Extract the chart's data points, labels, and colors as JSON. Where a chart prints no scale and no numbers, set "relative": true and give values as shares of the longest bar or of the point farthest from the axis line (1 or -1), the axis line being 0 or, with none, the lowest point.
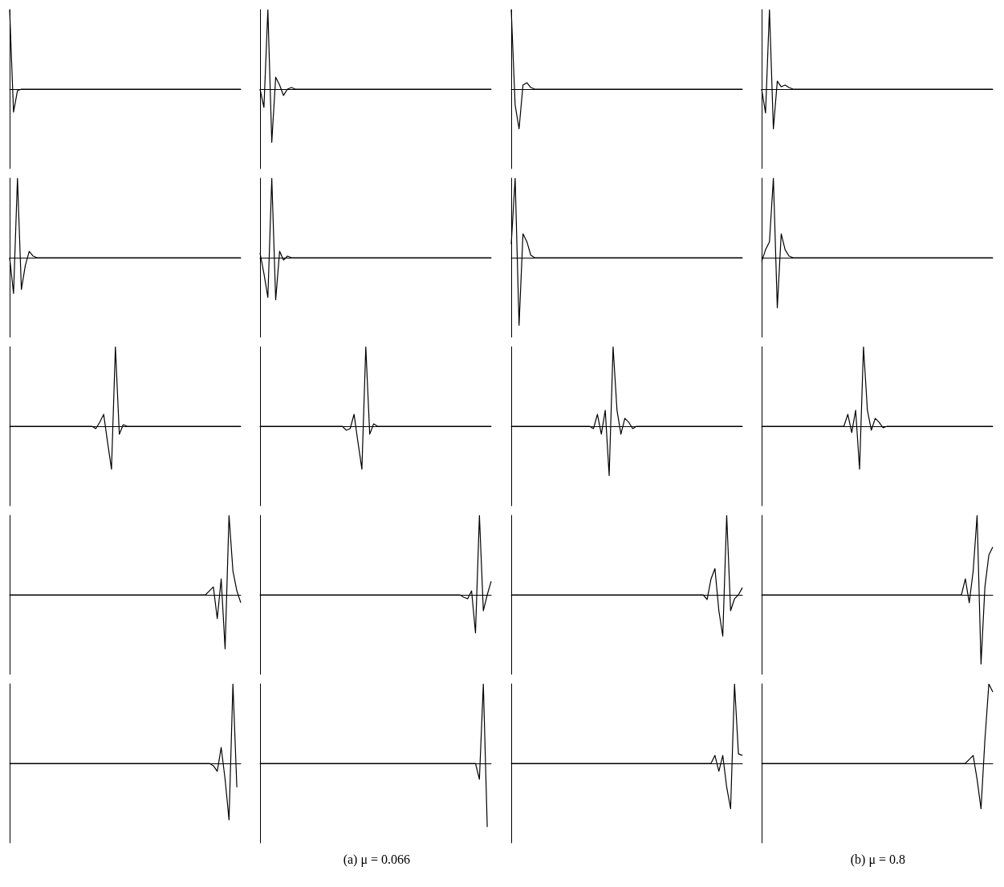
{
  "chart_data": [
    {
      "type": "line",
      "relative": true,
      "tick_labels": false,
      "color": "#000000",
      "categories": [
        null,
        null,
        null,
        null,
        null,
        null,
        null,
        null,
        null,
        null,
        null,
        null,
        null,
        null,
        null,
        null,
        null,
        null,
        null,
        null,
        null,
        null,
        null,
        null,
        null,
        null,
        null,
        null,
        null,
        null,
        null,
        null,
        null,
        null,
        null,
        null,
        null,
        null,
        null,
        null,
        null,
        null,
        null,
        null,
        null,
        null,
        null,
        null,
        null,
        null,
        null,
        null,
        null,
        null,
        null,
        null,
        null,
        null,
        null,
        null
      ],
      "values": [
        1,
        -0.29,
        -0.02,
        0,
        0,
        0,
        0,
        0,
        0,
        0,
        0,
        0,
        0,
        0,
        0,
        0,
        0,
        0,
        0,
        0,
        0,
        0,
        0,
        0,
        0,
        0,
        0,
        0,
        0,
        0,
        0,
        0,
        0,
        0,
        0,
        0,
        0,
        0,
        0,
        0,
        0,
        0,
        0,
        0,
        0,
        0,
        0,
        0,
        0,
        0,
        0,
        0,
        0,
        0,
        0,
        0,
        0,
        0,
        0,
        0
      ]
    },
    {
      "type": "line",
      "relative": true,
      "tick_labels": false,
      "color": "#000000",
      "categories": [
        null,
        null,
        null,
        null,
        null,
        null,
        null,
        null,
        null,
        null,
        null,
        null,
        null,
        null,
        null,
        null,
        null,
        null,
        null,
        null,
        null,
        null,
        null,
        null,
        null,
        null,
        null,
        null,
        null,
        null,
        null,
        null,
        null,
        null,
        null,
        null,
        null,
        null,
        null,
        null,
        null,
        null,
        null,
        null,
        null,
        null,
        null,
        null,
        null,
        null,
        null,
        null,
        null,
        null,
        null,
        null,
        null,
        null,
        null,
        null
      ],
      "values": [
        0,
        -0.23,
        1,
        -0.67,
        0.15,
        0.05,
        -0.08,
        0,
        0.02,
        0,
        0,
        0,
        0,
        0,
        0,
        0,
        0,
        0,
        0,
        0,
        0,
        0,
        0,
        0,
        0,
        0,
        0,
        0,
        0,
        0,
        0,
        0,
        0,
        0,
        0,
        0,
        0,
        0,
        0,
        0,
        0,
        0,
        0,
        0,
        0,
        0,
        0,
        0,
        0,
        0,
        0,
        0,
        0,
        0,
        0,
        0,
        0,
        0,
        0,
        0
      ]
    },
    {
      "type": "line",
      "relative": true,
      "tick_labels": false,
      "color": "#000000",
      "categories": [
        null,
        null,
        null,
        null,
        null,
        null,
        null,
        null,
        null,
        null,
        null,
        null,
        null,
        null,
        null,
        null,
        null,
        null,
        null,
        null,
        null,
        null,
        null,
        null,
        null,
        null,
        null,
        null,
        null,
        null,
        null,
        null,
        null,
        null,
        null,
        null,
        null,
        null,
        null,
        null,
        null,
        null,
        null,
        null,
        null,
        null,
        null,
        null,
        null,
        null,
        null,
        null,
        null,
        null,
        null,
        null,
        null,
        null,
        null,
        null
      ],
      "values": [
        1,
        -0.2,
        -0.5,
        0.05,
        0.08,
        0.02,
        0,
        0,
        0,
        0,
        0,
        0,
        0,
        0,
        0,
        0,
        0,
        0,
        0,
        0,
        0,
        0,
        0,
        0,
        0,
        0,
        0,
        0,
        0,
        0,
        0,
        0,
        0,
        0,
        0,
        0,
        0,
        0,
        0,
        0,
        0,
        0,
        0,
        0,
        0,
        0,
        0,
        0,
        0,
        0,
        0,
        0,
        0,
        0,
        0,
        0,
        0,
        0,
        0,
        0
      ]
    },
    {
      "type": "line",
      "relative": true,
      "tick_labels": false,
      "color": "#000000",
      "categories": [
        null,
        null,
        null,
        null,
        null,
        null,
        null,
        null,
        null,
        null,
        null,
        null,
        null,
        null,
        null,
        null,
        null,
        null,
        null,
        null,
        null,
        null,
        null,
        null,
        null,
        null,
        null,
        null,
        null,
        null,
        null,
        null,
        null,
        null,
        null,
        null,
        null,
        null,
        null,
        null,
        null,
        null,
        null,
        null,
        null,
        null,
        null,
        null,
        null,
        null,
        null,
        null,
        null,
        null,
        null,
        null,
        null,
        null,
        null,
        null
      ],
      "values": [
        0,
        -0.3,
        1,
        -0.5,
        0.1,
        0.03,
        0.05,
        0.02,
        0,
        0,
        0,
        0,
        0,
        0,
        0,
        0,
        0,
        0,
        0,
        0,
        0,
        0,
        0,
        0,
        0,
        0,
        0,
        0,
        0,
        0,
        0,
        0,
        0,
        0,
        0,
        0,
        0,
        0,
        0,
        0,
        0,
        0,
        0,
        0,
        0,
        0,
        0,
        0,
        0,
        0,
        0,
        0,
        0,
        0,
        0,
        0,
        0,
        0,
        0,
        0
      ]
    },
    {
      "type": "line",
      "relative": true,
      "tick_labels": false,
      "color": "#000000",
      "categories": [
        null,
        null,
        null,
        null,
        null,
        null,
        null,
        null,
        null,
        null,
        null,
        null,
        null,
        null,
        null,
        null,
        null,
        null,
        null,
        null,
        null,
        null,
        null,
        null,
        null,
        null,
        null,
        null,
        null,
        null,
        null,
        null,
        null,
        null,
        null,
        null,
        null,
        null,
        null,
        null,
        null,
        null,
        null,
        null,
        null,
        null,
        null,
        null,
        null,
        null,
        null,
        null,
        null,
        null,
        null,
        null,
        null,
        null,
        null,
        null
      ],
      "values": [
        0,
        -0.45,
        1,
        -0.4,
        -0.1,
        0.08,
        0.02,
        0,
        0,
        0,
        0,
        0,
        0,
        0,
        0,
        0,
        0,
        0,
        0,
        0,
        0,
        0,
        0,
        0,
        0,
        0,
        0,
        0,
        0,
        0,
        0,
        0,
        0,
        0,
        0,
        0,
        0,
        0,
        0,
        0,
        0,
        0,
        0,
        0,
        0,
        0,
        0,
        0,
        0,
        0,
        0,
        0,
        0,
        0,
        0,
        0,
        0,
        0,
        0,
        0
      ]
    },
    {
      "type": "line",
      "relative": true,
      "tick_labels": false,
      "color": "#000000",
      "categories": [
        null,
        null,
        null,
        null,
        null,
        null,
        null,
        null,
        null,
        null,
        null,
        null,
        null,
        null,
        null,
        null,
        null,
        null,
        null,
        null,
        null,
        null,
        null,
        null,
        null,
        null,
        null,
        null,
        null,
        null,
        null,
        null,
        null,
        null,
        null,
        null,
        null,
        null,
        null,
        null,
        null,
        null,
        null,
        null,
        null,
        null,
        null,
        null,
        null,
        null,
        null,
        null,
        null,
        null,
        null,
        null,
        null,
        null,
        null,
        null
      ],
      "values": [
        0.06,
        -0.2,
        -0.5,
        1,
        -0.53,
        0.08,
        -0.03,
        0.02,
        0,
        0,
        0,
        0,
        0,
        0,
        0,
        0,
        0,
        0,
        0,
        0,
        0,
        0,
        0,
        0,
        0,
        0,
        0,
        0,
        0,
        0,
        0,
        0,
        0,
        0,
        0,
        0,
        0,
        0,
        0,
        0,
        0,
        0,
        0,
        0,
        0,
        0,
        0,
        0,
        0,
        0,
        0,
        0,
        0,
        0,
        0,
        0,
        0,
        0,
        0,
        0
      ]
    },
    {
      "type": "line",
      "relative": true,
      "tick_labels": false,
      "color": "#000000",
      "categories": [
        null,
        null,
        null,
        null,
        null,
        null,
        null,
        null,
        null,
        null,
        null,
        null,
        null,
        null,
        null,
        null,
        null,
        null,
        null,
        null,
        null,
        null,
        null,
        null,
        null,
        null,
        null,
        null,
        null,
        null,
        null,
        null,
        null,
        null,
        null,
        null,
        null,
        null,
        null,
        null,
        null,
        null,
        null,
        null,
        null,
        null,
        null,
        null,
        null,
        null,
        null,
        null,
        null,
        null,
        null,
        null,
        null,
        null,
        null,
        null
      ],
      "values": [
        0.17,
        1,
        -0.85,
        0.3,
        0.2,
        0.03,
        0,
        0,
        0,
        0,
        0,
        0,
        0,
        0,
        0,
        0,
        0,
        0,
        0,
        0,
        0,
        0,
        0,
        0,
        0,
        0,
        0,
        0,
        0,
        0,
        0,
        0,
        0,
        0,
        0,
        0,
        0,
        0,
        0,
        0,
        0,
        0,
        0,
        0,
        0,
        0,
        0,
        0,
        0,
        0,
        0,
        0,
        0,
        0,
        0,
        0,
        0,
        0,
        0,
        0
      ]
    },
    {
      "type": "line",
      "relative": true,
      "tick_labels": false,
      "color": "#000000",
      "categories": [
        null,
        null,
        null,
        null,
        null,
        null,
        null,
        null,
        null,
        null,
        null,
        null,
        null,
        null,
        null,
        null,
        null,
        null,
        null,
        null,
        null,
        null,
        null,
        null,
        null,
        null,
        null,
        null,
        null,
        null,
        null,
        null,
        null,
        null,
        null,
        null,
        null,
        null,
        null,
        null,
        null,
        null,
        null,
        null,
        null,
        null,
        null,
        null,
        null,
        null,
        null,
        null,
        null,
        null,
        null,
        null,
        null,
        null,
        null,
        null
      ],
      "values": [
        -0.05,
        0.1,
        0.2,
        1,
        -0.63,
        0.3,
        0.1,
        0.02,
        0,
        0,
        0,
        0,
        0,
        0,
        0,
        0,
        0,
        0,
        0,
        0,
        0,
        0,
        0,
        0,
        0,
        0,
        0,
        0,
        0,
        0,
        0,
        0,
        0,
        0,
        0,
        0,
        0,
        0,
        0,
        0,
        0,
        0,
        0,
        0,
        0,
        0,
        0,
        0,
        0,
        0,
        0,
        0,
        0,
        0,
        0,
        0,
        0,
        0,
        0,
        0
      ]
    },
    {
      "type": "line",
      "relative": true,
      "tick_labels": false,
      "color": "#000000",
      "categories": [
        null,
        null,
        null,
        null,
        null,
        null,
        null,
        null,
        null,
        null,
        null,
        null,
        null,
        null,
        null,
        null,
        null,
        null,
        null,
        null,
        null,
        null,
        null,
        null,
        null,
        null,
        null,
        null,
        null,
        null,
        null,
        null,
        null,
        null,
        null,
        null,
        null,
        null,
        null,
        null,
        null,
        null,
        null,
        null,
        null,
        null,
        null,
        null,
        null,
        null,
        null,
        null,
        null,
        null,
        null,
        null,
        null,
        null,
        null,
        null
      ],
      "values": [
        0,
        0,
        0,
        0,
        0,
        0,
        0,
        0,
        0,
        0,
        0,
        0,
        0,
        0,
        0,
        0,
        0,
        0,
        0,
        0,
        0,
        0,
        -0.03,
        0.05,
        0.15,
        -0.2,
        -0.54,
        1,
        -0.1,
        0.02,
        0,
        0,
        0,
        0,
        0,
        0,
        0,
        0,
        0,
        0,
        0,
        0,
        0,
        0,
        0,
        0,
        0,
        0,
        0,
        0,
        0,
        0,
        0,
        0,
        0,
        0,
        0,
        0,
        0,
        0
      ]
    },
    {
      "type": "line",
      "relative": true,
      "tick_labels": false,
      "color": "#000000",
      "categories": [
        null,
        null,
        null,
        null,
        null,
        null,
        null,
        null,
        null,
        null,
        null,
        null,
        null,
        null,
        null,
        null,
        null,
        null,
        null,
        null,
        null,
        null,
        null,
        null,
        null,
        null,
        null,
        null,
        null,
        null,
        null,
        null,
        null,
        null,
        null,
        null,
        null,
        null,
        null,
        null,
        null,
        null,
        null,
        null,
        null,
        null,
        null,
        null,
        null,
        null,
        null,
        null,
        null,
        null,
        null,
        null,
        null,
        null,
        null,
        null
      ],
      "values": [
        0,
        0,
        0,
        0,
        0,
        0,
        0,
        0,
        0,
        0,
        0,
        0,
        0,
        0,
        0,
        0,
        0,
        0,
        0,
        0,
        0,
        0,
        -0.05,
        -0.03,
        0.15,
        -0.2,
        -0.54,
        1,
        -0.1,
        0.03,
        0,
        0,
        0,
        0,
        0,
        0,
        0,
        0,
        0,
        0,
        0,
        0,
        0,
        0,
        0,
        0,
        0,
        0,
        0,
        0,
        0,
        0,
        0,
        0,
        0,
        0,
        0,
        0,
        0,
        0
      ]
    },
    {
      "type": "line",
      "relative": true,
      "tick_labels": false,
      "color": "#000000",
      "categories": [
        null,
        null,
        null,
        null,
        null,
        null,
        null,
        null,
        null,
        null,
        null,
        null,
        null,
        null,
        null,
        null,
        null,
        null,
        null,
        null,
        null,
        null,
        null,
        null,
        null,
        null,
        null,
        null,
        null,
        null,
        null,
        null,
        null,
        null,
        null,
        null,
        null,
        null,
        null,
        null,
        null,
        null,
        null,
        null,
        null,
        null,
        null,
        null,
        null,
        null,
        null,
        null,
        null,
        null,
        null,
        null,
        null,
        null,
        null,
        null
      ],
      "values": [
        0,
        0,
        0,
        0,
        0,
        0,
        0,
        0,
        0,
        0,
        0,
        0,
        0,
        0,
        0,
        0,
        0,
        0,
        0,
        0,
        0,
        -0.03,
        0.15,
        -0.1,
        0.2,
        -0.62,
        1,
        0.2,
        -0.1,
        0.1,
        0.05,
        -0.03,
        0,
        0,
        0,
        0,
        0,
        0,
        0,
        0,
        0,
        0,
        0,
        0,
        0,
        0,
        0,
        0,
        0,
        0,
        0,
        0,
        0,
        0,
        0,
        0,
        0,
        0,
        0,
        0
      ]
    },
    {
      "type": "line",
      "relative": true,
      "tick_labels": false,
      "color": "#000000",
      "categories": [
        null,
        null,
        null,
        null,
        null,
        null,
        null,
        null,
        null,
        null,
        null,
        null,
        null,
        null,
        null,
        null,
        null,
        null,
        null,
        null,
        null,
        null,
        null,
        null,
        null,
        null,
        null,
        null,
        null,
        null,
        null,
        null,
        null,
        null,
        null,
        null,
        null,
        null,
        null,
        null,
        null,
        null,
        null,
        null,
        null,
        null,
        null,
        null,
        null,
        null,
        null,
        null,
        null,
        null,
        null,
        null,
        null,
        null,
        null,
        null
      ],
      "values": [
        0,
        0,
        0,
        0,
        0,
        0,
        0,
        0,
        0,
        0,
        0,
        0,
        0,
        0,
        0,
        0,
        0,
        0,
        0,
        0,
        0,
        0,
        0.15,
        -0.08,
        0.2,
        -0.54,
        1,
        0.2,
        -0.05,
        0.1,
        0.05,
        -0.02,
        0,
        0,
        0,
        0,
        0,
        0,
        0,
        0,
        0,
        0,
        0,
        0,
        0,
        0,
        0,
        0,
        0,
        0,
        0,
        0,
        0,
        0,
        0,
        0,
        0,
        0,
        0,
        0
      ]
    },
    {
      "type": "line",
      "relative": true,
      "tick_labels": false,
      "color": "#000000",
      "categories": [
        null,
        null,
        null,
        null,
        null,
        null,
        null,
        null,
        null,
        null,
        null,
        null,
        null,
        null,
        null,
        null,
        null,
        null,
        null,
        null,
        null,
        null,
        null,
        null,
        null,
        null,
        null,
        null,
        null,
        null,
        null,
        null,
        null,
        null,
        null,
        null,
        null,
        null,
        null,
        null,
        null,
        null,
        null,
        null,
        null,
        null,
        null,
        null,
        null,
        null,
        null,
        null,
        null,
        null,
        null,
        null,
        null,
        null,
        null,
        null
      ],
      "values": [
        0,
        0,
        0,
        0,
        0,
        0,
        0,
        0,
        0,
        0,
        0,
        0,
        0,
        0,
        0,
        0,
        0,
        0,
        0,
        0,
        0,
        0,
        0,
        0,
        0,
        0,
        0,
        0,
        0,
        0,
        0,
        0,
        0,
        0,
        0,
        0,
        0,
        0,
        0,
        0,
        0,
        0,
        0,
        0,
        0,
        0,
        0,
        0,
        0,
        0,
        0,
        0.05,
        0.1,
        -0.3,
        0.2,
        -0.68,
        1,
        0.3,
        0.05,
        -0.1
      ]
    },
    {
      "type": "line",
      "relative": true,
      "tick_labels": false,
      "color": "#000000",
      "categories": [
        null,
        null,
        null,
        null,
        null,
        null,
        null,
        null,
        null,
        null,
        null,
        null,
        null,
        null,
        null,
        null,
        null,
        null,
        null,
        null,
        null,
        null,
        null,
        null,
        null,
        null,
        null,
        null,
        null,
        null,
        null,
        null,
        null,
        null,
        null,
        null,
        null,
        null,
        null,
        null,
        null,
        null,
        null,
        null,
        null,
        null,
        null,
        null,
        null,
        null,
        null,
        null,
        null,
        null,
        null,
        null,
        null,
        null,
        null,
        null
      ],
      "values": [
        0,
        0,
        0,
        0,
        0,
        0,
        0,
        0,
        0,
        0,
        0,
        0,
        0,
        0,
        0,
        0,
        0,
        0,
        0,
        0,
        0,
        0,
        0,
        0,
        0,
        0,
        0,
        0,
        0,
        0,
        0,
        0,
        0,
        0,
        0,
        0,
        0,
        0,
        0,
        0,
        0,
        0,
        0,
        0,
        0,
        0,
        0,
        0,
        0,
        0,
        0,
        0,
        -0.03,
        -0.05,
        0.05,
        -0.48,
        1,
        -0.2,
        0,
        0.17
      ]
    },
    {
      "type": "line",
      "relative": true,
      "tick_labels": false,
      "color": "#000000",
      "categories": [
        null,
        null,
        null,
        null,
        null,
        null,
        null,
        null,
        null,
        null,
        null,
        null,
        null,
        null,
        null,
        null,
        null,
        null,
        null,
        null,
        null,
        null,
        null,
        null,
        null,
        null,
        null,
        null,
        null,
        null,
        null,
        null,
        null,
        null,
        null,
        null,
        null,
        null,
        null,
        null,
        null,
        null,
        null,
        null,
        null,
        null,
        null,
        null,
        null,
        null,
        null,
        null,
        null,
        null,
        null,
        null,
        null,
        null,
        null,
        null
      ],
      "values": [
        0,
        0,
        0,
        0,
        0,
        0,
        0,
        0,
        0,
        0,
        0,
        0,
        0,
        0,
        0,
        0,
        0,
        0,
        0,
        0,
        0,
        0,
        0,
        0,
        0,
        0,
        0,
        0,
        0,
        0,
        0,
        0,
        0,
        0,
        0,
        0,
        0,
        0,
        0,
        0,
        0,
        0,
        0,
        0,
        0,
        0,
        0,
        0,
        0,
        0,
        -0.06,
        0.2,
        0.33,
        -0.2,
        -0.52,
        1,
        -0.2,
        -0.05,
        0,
        0.09
      ]
    },
    {
      "type": "line",
      "relative": true,
      "tick_labels": false,
      "color": "#000000",
      "categories": [
        null,
        null,
        null,
        null,
        null,
        null,
        null,
        null,
        null,
        null,
        null,
        null,
        null,
        null,
        null,
        null,
        null,
        null,
        null,
        null,
        null,
        null,
        null,
        null,
        null,
        null,
        null,
        null,
        null,
        null,
        null,
        null,
        null,
        null,
        null,
        null,
        null,
        null,
        null,
        null,
        null,
        null,
        null,
        null,
        null,
        null,
        null,
        null,
        null,
        null,
        null,
        null,
        null,
        null,
        null,
        null,
        null,
        null,
        null,
        null
      ],
      "values": [
        0,
        0,
        0,
        0,
        0,
        0,
        0,
        0,
        0,
        0,
        0,
        0,
        0,
        0,
        0,
        0,
        0,
        0,
        0,
        0,
        0,
        0,
        0,
        0,
        0,
        0,
        0,
        0,
        0,
        0,
        0,
        0,
        0,
        0,
        0,
        0,
        0,
        0,
        0,
        0,
        0,
        0,
        0,
        0,
        0,
        0,
        0,
        0,
        0,
        0,
        0,
        0,
        0.2,
        -0.1,
        0.3,
        1,
        -0.87,
        0.1,
        0.5,
        0.6
      ]
    },
    {
      "type": "line",
      "relative": true,
      "tick_labels": false,
      "color": "#000000",
      "categories": [
        null,
        null,
        null,
        null,
        null,
        null,
        null,
        null,
        null,
        null,
        null,
        null,
        null,
        null,
        null,
        null,
        null,
        null,
        null,
        null,
        null,
        null,
        null,
        null,
        null,
        null,
        null,
        null,
        null,
        null,
        null,
        null,
        null,
        null,
        null,
        null,
        null,
        null,
        null,
        null,
        null,
        null,
        null,
        null,
        null,
        null,
        null,
        null,
        null,
        null,
        null,
        null,
        null,
        null,
        null,
        null,
        null,
        null,
        null,
        null
      ],
      "values": [
        0,
        0,
        0,
        0,
        0,
        0,
        0,
        0,
        0,
        0,
        0,
        0,
        0,
        0,
        0,
        0,
        0,
        0,
        0,
        0,
        0,
        0,
        0,
        0,
        0,
        0,
        0,
        0,
        0,
        0,
        0,
        0,
        0,
        0,
        0,
        0,
        0,
        0,
        0,
        0,
        0,
        0,
        0,
        0,
        0,
        0,
        0,
        0,
        0,
        0,
        0,
        0,
        -0.03,
        -0.1,
        0.2,
        -0.2,
        -0.71,
        1,
        -0.3,
        null
      ]
    },
    {
      "type": "line",
      "relative": true,
      "tick_labels": false,
      "color": "#000000",
      "annotations": [
        "(a) μ = 0.066"
      ],
      "categories": [
        null,
        null,
        null,
        null,
        null,
        null,
        null,
        null,
        null,
        null,
        null,
        null,
        null,
        null,
        null,
        null,
        null,
        null,
        null,
        null,
        null,
        null,
        null,
        null,
        null,
        null,
        null,
        null,
        null,
        null,
        null,
        null,
        null,
        null,
        null,
        null,
        null,
        null,
        null,
        null,
        null,
        null,
        null,
        null,
        null,
        null,
        null,
        null,
        null,
        null,
        null,
        null,
        null,
        null,
        null,
        null,
        null,
        null,
        null,
        null
      ],
      "values": [
        0,
        0,
        0,
        0,
        0,
        0,
        0,
        0,
        0,
        0,
        0,
        0,
        0,
        0,
        0,
        0,
        0,
        0,
        0,
        0,
        0,
        0,
        0,
        0,
        0,
        0,
        0,
        0,
        0,
        0,
        0,
        0,
        0,
        0,
        0,
        0,
        0,
        0,
        0,
        0,
        0,
        0,
        0,
        0,
        0,
        0,
        0,
        0,
        0,
        0,
        0,
        0,
        0,
        0,
        0,
        0,
        -0.2,
        1,
        -0.8,
        null
      ]
    },
    {
      "type": "line",
      "relative": true,
      "tick_labels": false,
      "color": "#000000",
      "categories": [
        null,
        null,
        null,
        null,
        null,
        null,
        null,
        null,
        null,
        null,
        null,
        null,
        null,
        null,
        null,
        null,
        null,
        null,
        null,
        null,
        null,
        null,
        null,
        null,
        null,
        null,
        null,
        null,
        null,
        null,
        null,
        null,
        null,
        null,
        null,
        null,
        null,
        null,
        null,
        null,
        null,
        null,
        null,
        null,
        null,
        null,
        null,
        null,
        null,
        null,
        null,
        null,
        null,
        null,
        null,
        null,
        null,
        null,
        null,
        null
      ],
      "values": [
        0,
        0,
        0,
        0,
        0,
        0,
        0,
        0,
        0,
        0,
        0,
        0,
        0,
        0,
        0,
        0,
        0,
        0,
        0,
        0,
        0,
        0,
        0,
        0,
        0,
        0,
        0,
        0,
        0,
        0,
        0,
        0,
        0,
        0,
        0,
        0,
        0,
        0,
        0,
        0,
        0,
        0,
        0,
        0,
        0,
        0,
        0,
        0,
        0,
        0,
        0,
        0,
        0.1,
        -0.1,
        0.1,
        -0.3,
        -0.57,
        1,
        0.12,
        0.1
      ]
    },
    {
      "type": "line",
      "relative": true,
      "tick_labels": false,
      "color": "#000000",
      "annotations": [
        "(b) μ = 0.8"
      ],
      "categories": [
        null,
        null,
        null,
        null,
        null,
        null,
        null,
        null,
        null,
        null,
        null,
        null,
        null,
        null,
        null,
        null,
        null,
        null,
        null,
        null,
        null,
        null,
        null,
        null,
        null,
        null,
        null,
        null,
        null,
        null,
        null,
        null,
        null,
        null,
        null,
        null,
        null,
        null,
        null,
        null,
        null,
        null,
        null,
        null,
        null,
        null,
        null,
        null,
        null,
        null,
        null,
        null,
        null,
        null,
        null,
        null,
        null,
        null,
        null,
        null
      ],
      "values": [
        0,
        0,
        0,
        0,
        0,
        0,
        0,
        0,
        0,
        0,
        0,
        0,
        0,
        0,
        0,
        0,
        0,
        0,
        0,
        0,
        0,
        0,
        0,
        0,
        0,
        0,
        0,
        0,
        0,
        0,
        0,
        0,
        0,
        0,
        0,
        0,
        0,
        0,
        0,
        0,
        0,
        0,
        0,
        0,
        0,
        0,
        0,
        0,
        0,
        0,
        0,
        0,
        0,
        0.05,
        0.1,
        -0.2,
        -0.57,
        0.3,
        1,
        0.9
      ]
    }
  ]
}
